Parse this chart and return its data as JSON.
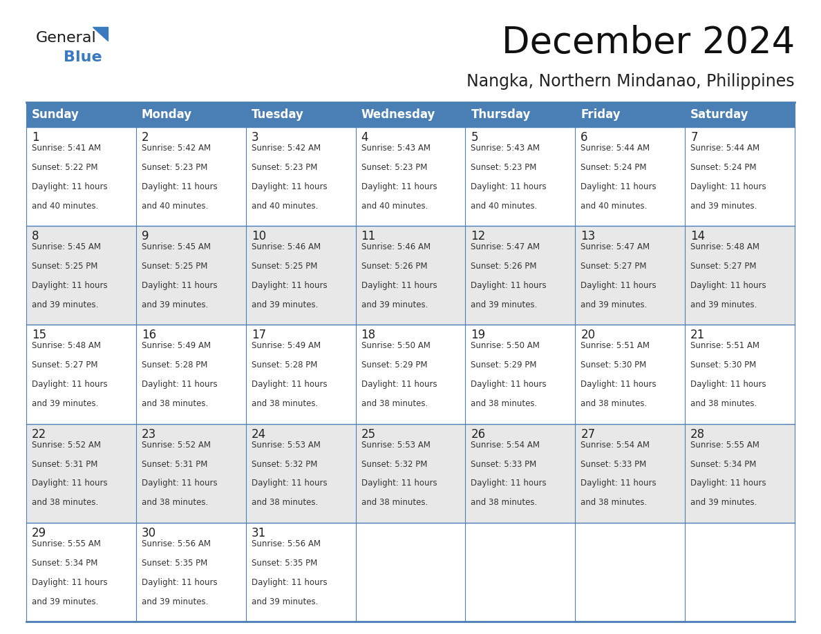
{
  "title": "December 2024",
  "subtitle": "Nangka, Northern Mindanao, Philippines",
  "header_color": "#4a7fb5",
  "header_text_color": "#ffffff",
  "cell_bg_color": "#ffffff",
  "alt_cell_bg_color": "#e8e8e8",
  "border_color": "#4a7fb5",
  "day_number_color": "#222222",
  "cell_text_color": "#333333",
  "days_of_week": [
    "Sunday",
    "Monday",
    "Tuesday",
    "Wednesday",
    "Thursday",
    "Friday",
    "Saturday"
  ],
  "calendar_data": [
    [
      {
        "day": "1",
        "sunrise": "5:41 AM",
        "sunset": "5:22 PM",
        "daylight_h": "11 hours",
        "daylight_m": "and 40 minutes."
      },
      {
        "day": "2",
        "sunrise": "5:42 AM",
        "sunset": "5:23 PM",
        "daylight_h": "11 hours",
        "daylight_m": "and 40 minutes."
      },
      {
        "day": "3",
        "sunrise": "5:42 AM",
        "sunset": "5:23 PM",
        "daylight_h": "11 hours",
        "daylight_m": "and 40 minutes."
      },
      {
        "day": "4",
        "sunrise": "5:43 AM",
        "sunset": "5:23 PM",
        "daylight_h": "11 hours",
        "daylight_m": "and 40 minutes."
      },
      {
        "day": "5",
        "sunrise": "5:43 AM",
        "sunset": "5:23 PM",
        "daylight_h": "11 hours",
        "daylight_m": "and 40 minutes."
      },
      {
        "day": "6",
        "sunrise": "5:44 AM",
        "sunset": "5:24 PM",
        "daylight_h": "11 hours",
        "daylight_m": "and 40 minutes."
      },
      {
        "day": "7",
        "sunrise": "5:44 AM",
        "sunset": "5:24 PM",
        "daylight_h": "11 hours",
        "daylight_m": "and 39 minutes."
      }
    ],
    [
      {
        "day": "8",
        "sunrise": "5:45 AM",
        "sunset": "5:25 PM",
        "daylight_h": "11 hours",
        "daylight_m": "and 39 minutes."
      },
      {
        "day": "9",
        "sunrise": "5:45 AM",
        "sunset": "5:25 PM",
        "daylight_h": "11 hours",
        "daylight_m": "and 39 minutes."
      },
      {
        "day": "10",
        "sunrise": "5:46 AM",
        "sunset": "5:25 PM",
        "daylight_h": "11 hours",
        "daylight_m": "and 39 minutes."
      },
      {
        "day": "11",
        "sunrise": "5:46 AM",
        "sunset": "5:26 PM",
        "daylight_h": "11 hours",
        "daylight_m": "and 39 minutes."
      },
      {
        "day": "12",
        "sunrise": "5:47 AM",
        "sunset": "5:26 PM",
        "daylight_h": "11 hours",
        "daylight_m": "and 39 minutes."
      },
      {
        "day": "13",
        "sunrise": "5:47 AM",
        "sunset": "5:27 PM",
        "daylight_h": "11 hours",
        "daylight_m": "and 39 minutes."
      },
      {
        "day": "14",
        "sunrise": "5:48 AM",
        "sunset": "5:27 PM",
        "daylight_h": "11 hours",
        "daylight_m": "and 39 minutes."
      }
    ],
    [
      {
        "day": "15",
        "sunrise": "5:48 AM",
        "sunset": "5:27 PM",
        "daylight_h": "11 hours",
        "daylight_m": "and 39 minutes."
      },
      {
        "day": "16",
        "sunrise": "5:49 AM",
        "sunset": "5:28 PM",
        "daylight_h": "11 hours",
        "daylight_m": "and 38 minutes."
      },
      {
        "day": "17",
        "sunrise": "5:49 AM",
        "sunset": "5:28 PM",
        "daylight_h": "11 hours",
        "daylight_m": "and 38 minutes."
      },
      {
        "day": "18",
        "sunrise": "5:50 AM",
        "sunset": "5:29 PM",
        "daylight_h": "11 hours",
        "daylight_m": "and 38 minutes."
      },
      {
        "day": "19",
        "sunrise": "5:50 AM",
        "sunset": "5:29 PM",
        "daylight_h": "11 hours",
        "daylight_m": "and 38 minutes."
      },
      {
        "day": "20",
        "sunrise": "5:51 AM",
        "sunset": "5:30 PM",
        "daylight_h": "11 hours",
        "daylight_m": "and 38 minutes."
      },
      {
        "day": "21",
        "sunrise": "5:51 AM",
        "sunset": "5:30 PM",
        "daylight_h": "11 hours",
        "daylight_m": "and 38 minutes."
      }
    ],
    [
      {
        "day": "22",
        "sunrise": "5:52 AM",
        "sunset": "5:31 PM",
        "daylight_h": "11 hours",
        "daylight_m": "and 38 minutes."
      },
      {
        "day": "23",
        "sunrise": "5:52 AM",
        "sunset": "5:31 PM",
        "daylight_h": "11 hours",
        "daylight_m": "and 38 minutes."
      },
      {
        "day": "24",
        "sunrise": "5:53 AM",
        "sunset": "5:32 PM",
        "daylight_h": "11 hours",
        "daylight_m": "and 38 minutes."
      },
      {
        "day": "25",
        "sunrise": "5:53 AM",
        "sunset": "5:32 PM",
        "daylight_h": "11 hours",
        "daylight_m": "and 38 minutes."
      },
      {
        "day": "26",
        "sunrise": "5:54 AM",
        "sunset": "5:33 PM",
        "daylight_h": "11 hours",
        "daylight_m": "and 38 minutes."
      },
      {
        "day": "27",
        "sunrise": "5:54 AM",
        "sunset": "5:33 PM",
        "daylight_h": "11 hours",
        "daylight_m": "and 38 minutes."
      },
      {
        "day": "28",
        "sunrise": "5:55 AM",
        "sunset": "5:34 PM",
        "daylight_h": "11 hours",
        "daylight_m": "and 39 minutes."
      }
    ],
    [
      {
        "day": "29",
        "sunrise": "5:55 AM",
        "sunset": "5:34 PM",
        "daylight_h": "11 hours",
        "daylight_m": "and 39 minutes."
      },
      {
        "day": "30",
        "sunrise": "5:56 AM",
        "sunset": "5:35 PM",
        "daylight_h": "11 hours",
        "daylight_m": "and 39 minutes."
      },
      {
        "day": "31",
        "sunrise": "5:56 AM",
        "sunset": "5:35 PM",
        "daylight_h": "11 hours",
        "daylight_m": "and 39 minutes."
      },
      null,
      null,
      null,
      null
    ]
  ],
  "logo_general_color": "#1a1a1a",
  "logo_blue_color": "#3a7abf",
  "title_fontsize": 38,
  "subtitle_fontsize": 17,
  "header_fontsize": 12,
  "day_number_fontsize": 12,
  "cell_text_fontsize": 8.5
}
